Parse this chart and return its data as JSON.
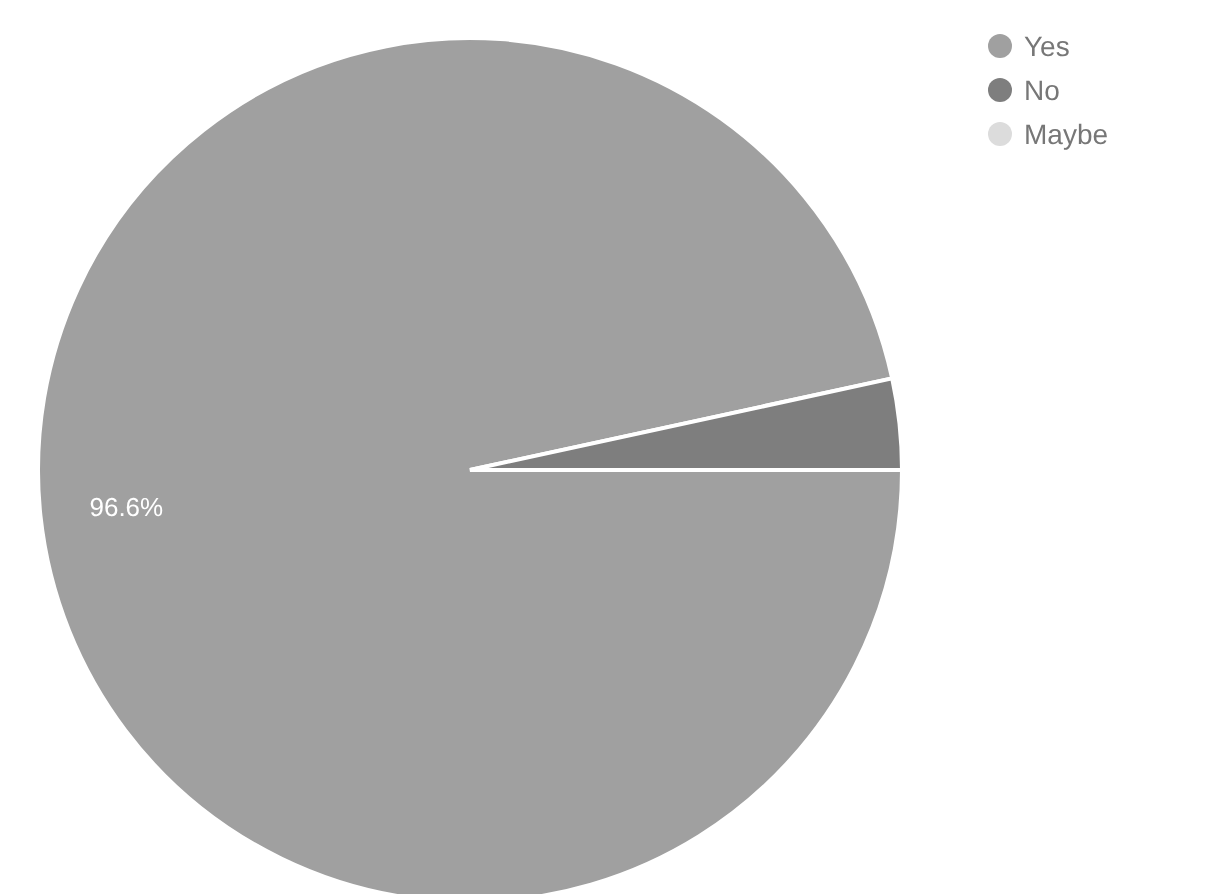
{
  "chart_data": {
    "type": "pie",
    "categories": [
      "Yes",
      "No",
      "Maybe"
    ],
    "values": [
      96.6,
      3.4,
      0
    ],
    "colors": [
      "#a0a0a0",
      "#7e7e7e",
      "#dcdcdc"
    ],
    "value_labels": [
      "96.6%",
      null,
      null
    ],
    "legend": "top right"
  }
}
